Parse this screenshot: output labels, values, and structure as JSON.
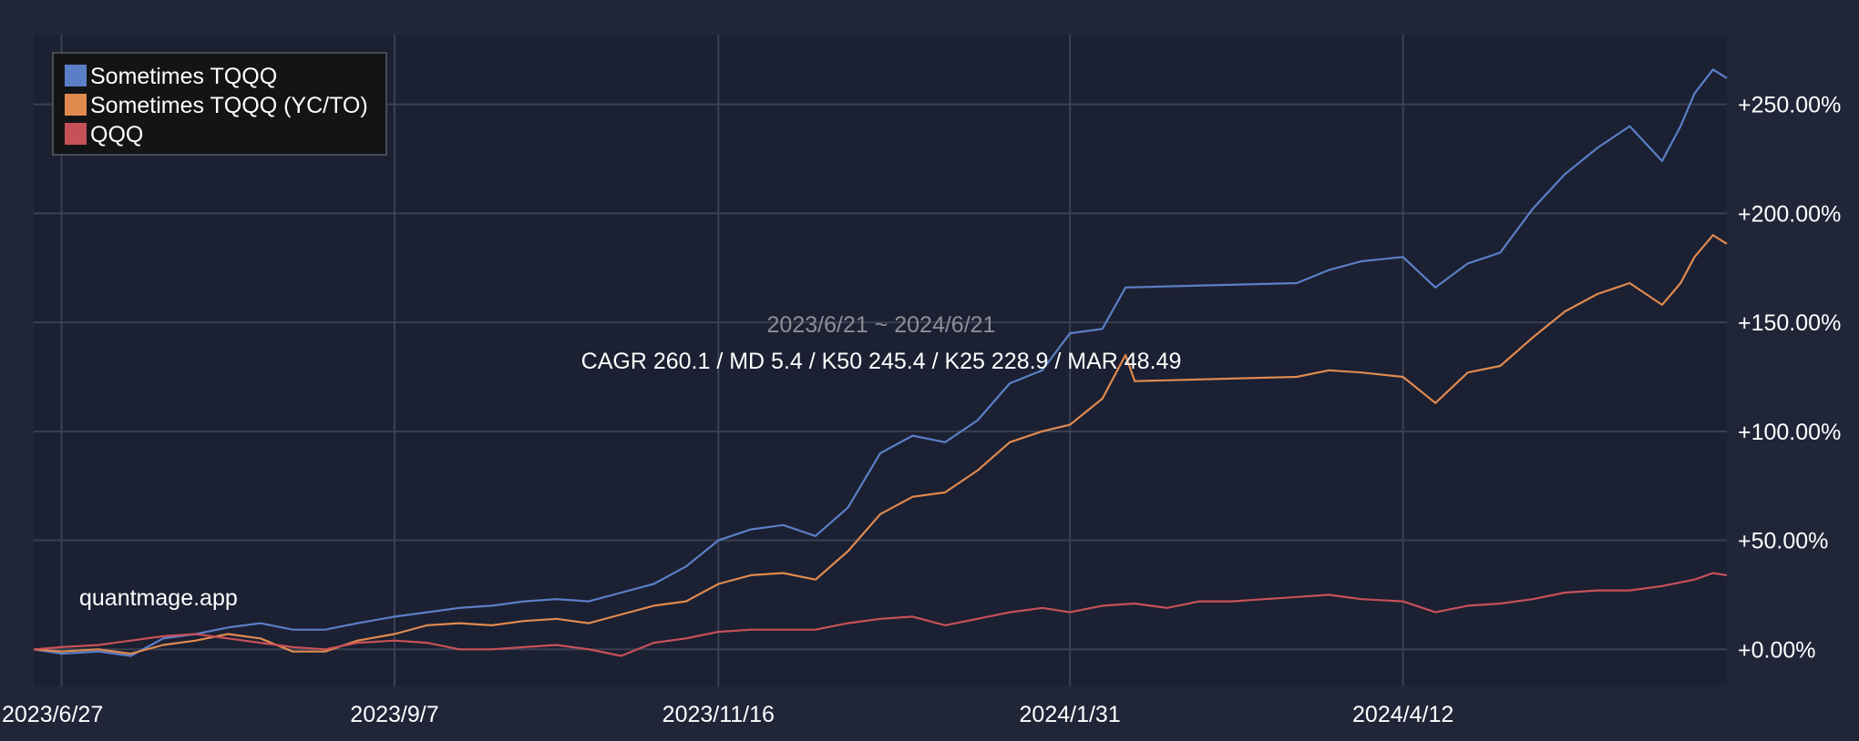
{
  "colors": {
    "page_background": "#202638",
    "plot_background": "#1b2032",
    "grid": "#3a4152",
    "axis_text": "#ffffff",
    "legend_background": "#131416",
    "legend_border": "#474c55",
    "subtitle": "#8c8f96"
  },
  "chart_data": {
    "type": "line",
    "title": "",
    "subtitle": "2023/6/21 ~ 2024/6/21",
    "stats_text": "CAGR 260.1 / MD 5.4 / K50 245.4 / K25 228.9 / MAR 48.49",
    "watermark": "quantmage.app",
    "xlabel": "",
    "ylabel": "",
    "x_range": [
      "2023-06-21",
      "2024-06-21"
    ],
    "ylim": [
      -17,
      282
    ],
    "x_ticks": [
      {
        "date": "2023-06-27",
        "label": "2023/6/27"
      },
      {
        "date": "2023-09-07",
        "label": "2023/9/7"
      },
      {
        "date": "2023-11-16",
        "label": "2023/11/16"
      },
      {
        "date": "2024-01-31",
        "label": "2024/1/31"
      },
      {
        "date": "2024-04-12",
        "label": "2024/4/12"
      }
    ],
    "y_ticks": [
      {
        "value": 0,
        "label": "+0.00%"
      },
      {
        "value": 50,
        "label": "+50.00%"
      },
      {
        "value": 100,
        "label": "+100.00%"
      },
      {
        "value": 150,
        "label": "+150.00%"
      },
      {
        "value": 200,
        "label": "+200.00%"
      },
      {
        "value": 250,
        "label": "+250.00%"
      }
    ],
    "grid": true,
    "legend_position": "top-left",
    "series": [
      {
        "name": "Sometimes TQQQ",
        "color": "#5b7fc7",
        "points": [
          [
            "2023-06-21",
            0
          ],
          [
            "2023-06-27",
            -2
          ],
          [
            "2023-07-05",
            -1
          ],
          [
            "2023-07-12",
            -3
          ],
          [
            "2023-07-19",
            5
          ],
          [
            "2023-07-26",
            7
          ],
          [
            "2023-08-02",
            10
          ],
          [
            "2023-08-09",
            12
          ],
          [
            "2023-08-16",
            9
          ],
          [
            "2023-08-23",
            9
          ],
          [
            "2023-08-30",
            12
          ],
          [
            "2023-09-07",
            15
          ],
          [
            "2023-09-14",
            17
          ],
          [
            "2023-09-21",
            19
          ],
          [
            "2023-09-28",
            20
          ],
          [
            "2023-10-05",
            22
          ],
          [
            "2023-10-12",
            23
          ],
          [
            "2023-10-19",
            22
          ],
          [
            "2023-10-26",
            26
          ],
          [
            "2023-11-02",
            30
          ],
          [
            "2023-11-09",
            38
          ],
          [
            "2023-11-16",
            50
          ],
          [
            "2023-11-23",
            55
          ],
          [
            "2023-11-30",
            57
          ],
          [
            "2023-12-07",
            52
          ],
          [
            "2023-12-14",
            65
          ],
          [
            "2023-12-21",
            90
          ],
          [
            "2023-12-28",
            98
          ],
          [
            "2024-01-04",
            95
          ],
          [
            "2024-01-11",
            105
          ],
          [
            "2024-01-18",
            122
          ],
          [
            "2024-01-25",
            128
          ],
          [
            "2024-01-31",
            145
          ],
          [
            "2024-02-07",
            147
          ],
          [
            "2024-02-12",
            166
          ],
          [
            "2024-03-20",
            168
          ],
          [
            "2024-03-27",
            174
          ],
          [
            "2024-04-03",
            178
          ],
          [
            "2024-04-12",
            180
          ],
          [
            "2024-04-19",
            166
          ],
          [
            "2024-04-26",
            177
          ],
          [
            "2024-05-03",
            182
          ],
          [
            "2024-05-10",
            202
          ],
          [
            "2024-05-17",
            218
          ],
          [
            "2024-05-24",
            230
          ],
          [
            "2024-05-31",
            240
          ],
          [
            "2024-06-07",
            224
          ],
          [
            "2024-06-11",
            240
          ],
          [
            "2024-06-14",
            255
          ],
          [
            "2024-06-18",
            266
          ],
          [
            "2024-06-21",
            262
          ]
        ]
      },
      {
        "name": "Sometimes TQQQ (YC/TO)",
        "color": "#e08a4f",
        "points": [
          [
            "2023-06-21",
            0
          ],
          [
            "2023-06-27",
            -1
          ],
          [
            "2023-07-05",
            0
          ],
          [
            "2023-07-12",
            -2
          ],
          [
            "2023-07-19",
            2
          ],
          [
            "2023-07-26",
            4
          ],
          [
            "2023-08-02",
            7
          ],
          [
            "2023-08-09",
            5
          ],
          [
            "2023-08-16",
            -1
          ],
          [
            "2023-08-23",
            -1
          ],
          [
            "2023-08-30",
            4
          ],
          [
            "2023-09-07",
            7
          ],
          [
            "2023-09-14",
            11
          ],
          [
            "2023-09-21",
            12
          ],
          [
            "2023-09-28",
            11
          ],
          [
            "2023-10-05",
            13
          ],
          [
            "2023-10-12",
            14
          ],
          [
            "2023-10-19",
            12
          ],
          [
            "2023-10-26",
            16
          ],
          [
            "2023-11-02",
            20
          ],
          [
            "2023-11-09",
            22
          ],
          [
            "2023-11-16",
            30
          ],
          [
            "2023-11-23",
            34
          ],
          [
            "2023-11-30",
            35
          ],
          [
            "2023-12-07",
            32
          ],
          [
            "2023-12-14",
            45
          ],
          [
            "2023-12-21",
            62
          ],
          [
            "2023-12-28",
            70
          ],
          [
            "2024-01-04",
            72
          ],
          [
            "2024-01-11",
            82
          ],
          [
            "2024-01-18",
            95
          ],
          [
            "2024-01-25",
            100
          ],
          [
            "2024-01-31",
            103
          ],
          [
            "2024-02-07",
            115
          ],
          [
            "2024-02-12",
            135
          ],
          [
            "2024-02-14",
            123
          ],
          [
            "2024-03-20",
            125
          ],
          [
            "2024-03-27",
            128
          ],
          [
            "2024-04-03",
            127
          ],
          [
            "2024-04-12",
            125
          ],
          [
            "2024-04-19",
            113
          ],
          [
            "2024-04-26",
            127
          ],
          [
            "2024-05-03",
            130
          ],
          [
            "2024-05-10",
            143
          ],
          [
            "2024-05-17",
            155
          ],
          [
            "2024-05-24",
            163
          ],
          [
            "2024-05-31",
            168
          ],
          [
            "2024-06-07",
            158
          ],
          [
            "2024-06-11",
            168
          ],
          [
            "2024-06-14",
            180
          ],
          [
            "2024-06-18",
            190
          ],
          [
            "2024-06-21",
            186
          ]
        ]
      },
      {
        "name": "QQQ",
        "color": "#c75158",
        "points": [
          [
            "2023-06-21",
            0
          ],
          [
            "2023-06-27",
            1
          ],
          [
            "2023-07-05",
            2
          ],
          [
            "2023-07-12",
            4
          ],
          [
            "2023-07-19",
            6
          ],
          [
            "2023-07-26",
            7
          ],
          [
            "2023-08-02",
            5
          ],
          [
            "2023-08-09",
            3
          ],
          [
            "2023-08-16",
            1
          ],
          [
            "2023-08-23",
            0
          ],
          [
            "2023-08-30",
            3
          ],
          [
            "2023-09-07",
            4
          ],
          [
            "2023-09-14",
            3
          ],
          [
            "2023-09-21",
            0
          ],
          [
            "2023-09-28",
            0
          ],
          [
            "2023-10-05",
            1
          ],
          [
            "2023-10-12",
            2
          ],
          [
            "2023-10-19",
            0
          ],
          [
            "2023-10-26",
            -3
          ],
          [
            "2023-11-02",
            3
          ],
          [
            "2023-11-09",
            5
          ],
          [
            "2023-11-16",
            8
          ],
          [
            "2023-11-23",
            9
          ],
          [
            "2023-11-30",
            9
          ],
          [
            "2023-12-07",
            9
          ],
          [
            "2023-12-14",
            12
          ],
          [
            "2023-12-21",
            14
          ],
          [
            "2023-12-28",
            15
          ],
          [
            "2024-01-04",
            11
          ],
          [
            "2024-01-11",
            14
          ],
          [
            "2024-01-18",
            17
          ],
          [
            "2024-01-25",
            19
          ],
          [
            "2024-01-31",
            17
          ],
          [
            "2024-02-07",
            20
          ],
          [
            "2024-02-14",
            21
          ],
          [
            "2024-02-21",
            19
          ],
          [
            "2024-02-28",
            22
          ],
          [
            "2024-03-06",
            22
          ],
          [
            "2024-03-13",
            23
          ],
          [
            "2024-03-20",
            24
          ],
          [
            "2024-03-27",
            25
          ],
          [
            "2024-04-03",
            23
          ],
          [
            "2024-04-12",
            22
          ],
          [
            "2024-04-19",
            17
          ],
          [
            "2024-04-26",
            20
          ],
          [
            "2024-05-03",
            21
          ],
          [
            "2024-05-10",
            23
          ],
          [
            "2024-05-17",
            26
          ],
          [
            "2024-05-24",
            27
          ],
          [
            "2024-05-31",
            27
          ],
          [
            "2024-06-07",
            29
          ],
          [
            "2024-06-14",
            32
          ],
          [
            "2024-06-18",
            35
          ],
          [
            "2024-06-21",
            34
          ]
        ]
      }
    ]
  }
}
